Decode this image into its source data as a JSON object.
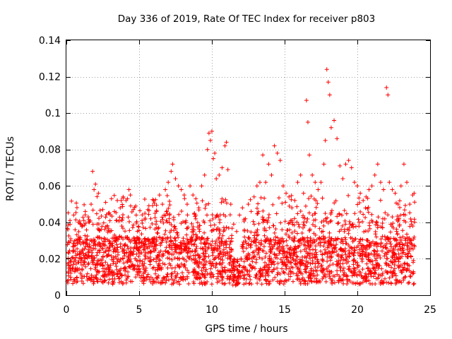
{
  "chart_data": {
    "type": "scatter",
    "title": "Day 336 of 2019, Rate Of TEC Index for receiver p803",
    "xlabel": "GPS time / hours",
    "ylabel": "ROTI / TECUs",
    "xlim": [
      0,
      25
    ],
    "ylim": [
      0,
      0.14
    ],
    "x_ticks": [
      0,
      5,
      10,
      15,
      20,
      25
    ],
    "x_tick_labels": [
      "0",
      "5",
      "10",
      "15",
      "20",
      "25"
    ],
    "y_ticks": [
      0,
      0.02,
      0.04,
      0.06,
      0.08,
      0.1,
      0.12,
      0.14
    ],
    "y_tick_labels": [
      "0",
      "0.02",
      "0.04",
      "0.06",
      "0.08",
      "0.1",
      "0.12",
      "0.14"
    ],
    "grid": true,
    "marker": "+",
    "series": [
      {
        "name": "ROTI",
        "color": "#ff0000",
        "points": [
          [
            0.1,
            0.036
          ],
          [
            0.3,
            0.031
          ],
          [
            0.5,
            0.044
          ],
          [
            0.6,
            0.024
          ],
          [
            0.8,
            0.018
          ],
          [
            1.0,
            0.039
          ],
          [
            1.2,
            0.041
          ],
          [
            1.3,
            0.046
          ],
          [
            1.5,
            0.043
          ],
          [
            1.7,
            0.05
          ],
          [
            1.8,
            0.068
          ],
          [
            1.9,
            0.058
          ],
          [
            2.0,
            0.061
          ],
          [
            2.2,
            0.056
          ],
          [
            2.5,
            0.047
          ],
          [
            2.7,
            0.051
          ],
          [
            2.9,
            0.045
          ],
          [
            3.1,
            0.053
          ],
          [
            3.3,
            0.046
          ],
          [
            3.5,
            0.052
          ],
          [
            3.7,
            0.048
          ],
          [
            3.9,
            0.054
          ],
          [
            4.1,
            0.052
          ],
          [
            4.3,
            0.058
          ],
          [
            4.4,
            0.055
          ],
          [
            4.6,
            0.047
          ],
          [
            4.8,
            0.044
          ],
          [
            5.0,
            0.026
          ],
          [
            5.2,
            0.041
          ],
          [
            5.4,
            0.045
          ],
          [
            5.6,
            0.047
          ],
          [
            5.8,
            0.042
          ],
          [
            6.0,
            0.052
          ],
          [
            6.2,
            0.046
          ],
          [
            6.4,
            0.055
          ],
          [
            6.6,
            0.05
          ],
          [
            6.8,
            0.058
          ],
          [
            7.0,
            0.062
          ],
          [
            7.2,
            0.068
          ],
          [
            7.3,
            0.072
          ],
          [
            7.5,
            0.064
          ],
          [
            7.7,
            0.06
          ],
          [
            7.9,
            0.058
          ],
          [
            8.1,
            0.055
          ],
          [
            8.3,
            0.05
          ],
          [
            8.5,
            0.06
          ],
          [
            8.7,
            0.055
          ],
          [
            8.9,
            0.053
          ],
          [
            9.1,
            0.048
          ],
          [
            9.3,
            0.06
          ],
          [
            9.5,
            0.066
          ],
          [
            9.7,
            0.08
          ],
          [
            9.8,
            0.089
          ],
          [
            9.9,
            0.085
          ],
          [
            10.0,
            0.09
          ],
          [
            10.1,
            0.075
          ],
          [
            10.2,
            0.078
          ],
          [
            10.3,
            0.064
          ],
          [
            10.5,
            0.066
          ],
          [
            10.7,
            0.07
          ],
          [
            10.9,
            0.082
          ],
          [
            11.0,
            0.084
          ],
          [
            11.1,
            0.069
          ],
          [
            11.3,
            0.05
          ],
          [
            11.5,
            0.039
          ],
          [
            11.7,
            0.035
          ],
          [
            11.9,
            0.044
          ],
          [
            12.1,
            0.048
          ],
          [
            12.3,
            0.042
          ],
          [
            12.5,
            0.05
          ],
          [
            12.7,
            0.046
          ],
          [
            12.9,
            0.054
          ],
          [
            13.1,
            0.06
          ],
          [
            13.3,
            0.062
          ],
          [
            13.5,
            0.077
          ],
          [
            13.7,
            0.062
          ],
          [
            13.9,
            0.072
          ],
          [
            14.1,
            0.066
          ],
          [
            14.3,
            0.082
          ],
          [
            14.5,
            0.078
          ],
          [
            14.7,
            0.074
          ],
          [
            14.9,
            0.06
          ],
          [
            15.1,
            0.056
          ],
          [
            15.3,
            0.054
          ],
          [
            15.5,
            0.048
          ],
          [
            15.7,
            0.052
          ],
          [
            15.9,
            0.062
          ],
          [
            16.1,
            0.066
          ],
          [
            16.3,
            0.056
          ],
          [
            16.5,
            0.107
          ],
          [
            16.6,
            0.095
          ],
          [
            16.7,
            0.077
          ],
          [
            16.9,
            0.066
          ],
          [
            17.1,
            0.062
          ],
          [
            17.3,
            0.058
          ],
          [
            17.5,
            0.062
          ],
          [
            17.7,
            0.072
          ],
          [
            17.8,
            0.085
          ],
          [
            17.9,
            0.124
          ],
          [
            18.0,
            0.117
          ],
          [
            18.1,
            0.11
          ],
          [
            18.2,
            0.092
          ],
          [
            18.4,
            0.096
          ],
          [
            18.6,
            0.086
          ],
          [
            18.8,
            0.071
          ],
          [
            19.0,
            0.064
          ],
          [
            19.2,
            0.072
          ],
          [
            19.4,
            0.074
          ],
          [
            19.6,
            0.07
          ],
          [
            19.8,
            0.062
          ],
          [
            20.0,
            0.06
          ],
          [
            20.2,
            0.056
          ],
          [
            20.4,
            0.052
          ],
          [
            20.6,
            0.054
          ],
          [
            20.8,
            0.058
          ],
          [
            21.0,
            0.06
          ],
          [
            21.2,
            0.066
          ],
          [
            21.4,
            0.072
          ],
          [
            21.6,
            0.062
          ],
          [
            21.8,
            0.058
          ],
          [
            22.0,
            0.114
          ],
          [
            22.1,
            0.11
          ],
          [
            22.2,
            0.062
          ],
          [
            22.4,
            0.058
          ],
          [
            22.6,
            0.056
          ],
          [
            22.8,
            0.05
          ],
          [
            23.0,
            0.06
          ],
          [
            23.2,
            0.072
          ],
          [
            23.4,
            0.062
          ],
          [
            23.6,
            0.05
          ],
          [
            23.8,
            0.055
          ],
          [
            23.9,
            0.056
          ]
        ]
      }
    ]
  }
}
